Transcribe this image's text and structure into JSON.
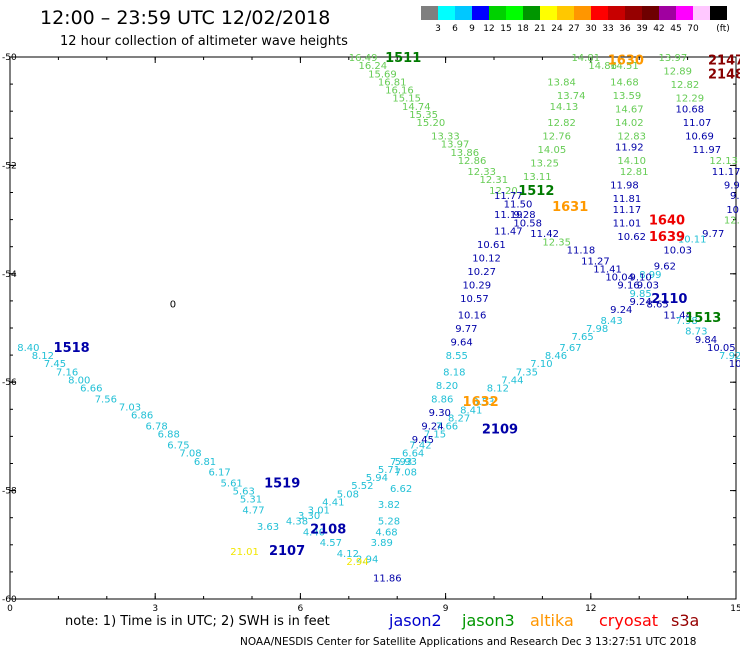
{
  "header": {
    "title": "12:00  –  23:59  UTC  12/02/2018",
    "subtitle": "12 hour collection of altimeter wave heights"
  },
  "colorbar": {
    "colors": [
      "#7f7f7f",
      "#00ffff",
      "#00c8ff",
      "#0000ff",
      "#00d200",
      "#00ff00",
      "#009600",
      "#ffff00",
      "#ffc800",
      "#ff9600",
      "#ff0000",
      "#c80000",
      "#960000",
      "#6e0000",
      "#a000a0",
      "#ff00ff",
      "#ffc8ff",
      "#000000"
    ],
    "labels": [
      "3",
      "6",
      "9",
      "12",
      "15",
      "18",
      "21",
      "24",
      "27",
      "30",
      "33",
      "36",
      "39",
      "42",
      "45",
      "70",
      "(ft)"
    ]
  },
  "chart_data": {
    "type": "scatter",
    "xlim": [
      0,
      15
    ],
    "ylim": [
      -60,
      -50
    ],
    "xticks": [
      "0",
      "3",
      "6",
      "9",
      "12",
      "15"
    ],
    "yticks": [
      "-50",
      "-52",
      "-54",
      "-56",
      "-58",
      "-60"
    ],
    "grid": false,
    "colors": {
      "cyan": "#22c0d6",
      "green": "#66cc55",
      "blue": "#0000a8",
      "dkgreen": "#007a00",
      "orange": "#ff9900",
      "yellow": "#f2e600",
      "red": "#ee0000",
      "darkred": "#880000"
    },
    "values": [
      {
        "x": 7.0,
        "y": -50.0,
        "t": "16.49",
        "c": "green"
      },
      {
        "x": 7.2,
        "y": -50.15,
        "t": "16.24",
        "c": "green"
      },
      {
        "x": 7.4,
        "y": -50.3,
        "t": "15.69",
        "c": "green"
      },
      {
        "x": 7.6,
        "y": -50.45,
        "t": "16.81",
        "c": "green"
      },
      {
        "x": 7.75,
        "y": -50.6,
        "t": "16.16",
        "c": "green"
      },
      {
        "x": 7.9,
        "y": -50.75,
        "t": "15.15",
        "c": "green"
      },
      {
        "x": 8.1,
        "y": -50.9,
        "t": "14.74",
        "c": "green"
      },
      {
        "x": 8.25,
        "y": -51.05,
        "t": "15.35",
        "c": "green"
      },
      {
        "x": 8.4,
        "y": -51.2,
        "t": "15.20",
        "c": "green"
      },
      {
        "x": 8.7,
        "y": -51.45,
        "t": "13.33",
        "c": "green"
      },
      {
        "x": 8.9,
        "y": -51.6,
        "t": "13.97",
        "c": "green"
      },
      {
        "x": 9.1,
        "y": -51.75,
        "t": "13.86",
        "c": "green"
      },
      {
        "x": 9.25,
        "y": -51.9,
        "t": "12.86",
        "c": "green"
      },
      {
        "x": 9.45,
        "y": -52.1,
        "t": "12.33",
        "c": "green"
      },
      {
        "x": 9.7,
        "y": -52.25,
        "t": "12.31",
        "c": "green"
      },
      {
        "x": 9.9,
        "y": -52.45,
        "t": "12.20",
        "c": "green"
      },
      {
        "x": 10.0,
        "y": -52.55,
        "t": "11.77",
        "c": "blue"
      },
      {
        "x": 10.2,
        "y": -52.7,
        "t": "11.50",
        "c": "blue"
      },
      {
        "x": 10.0,
        "y": -52.9,
        "t": "11.19",
        "c": "blue"
      },
      {
        "x": 10.4,
        "y": -52.9,
        "t": "9.28",
        "c": "blue"
      },
      {
        "x": 10.4,
        "y": -53.05,
        "t": "10.58",
        "c": "blue"
      },
      {
        "x": 10.0,
        "y": -53.2,
        "t": "11.47",
        "c": "blue"
      },
      {
        "x": 10.75,
        "y": -53.25,
        "t": "11.42",
        "c": "blue"
      },
      {
        "x": 11.0,
        "y": -53.4,
        "t": "12.35",
        "c": "green"
      },
      {
        "x": 9.65,
        "y": -53.45,
        "t": "10.61",
        "c": "blue"
      },
      {
        "x": 11.5,
        "y": -53.55,
        "t": "11.18",
        "c": "blue"
      },
      {
        "x": 9.55,
        "y": -53.7,
        "t": "10.12",
        "c": "blue"
      },
      {
        "x": 11.8,
        "y": -53.75,
        "t": "11.27",
        "c": "blue"
      },
      {
        "x": 12.05,
        "y": -53.9,
        "t": "11.41",
        "c": "blue"
      },
      {
        "x": 9.45,
        "y": -53.95,
        "t": "10.27",
        "c": "blue"
      },
      {
        "x": 12.3,
        "y": -54.05,
        "t": "10.04",
        "c": "blue"
      },
      {
        "x": 9.35,
        "y": -54.2,
        "t": "10.29",
        "c": "blue"
      },
      {
        "x": 12.55,
        "y": -54.2,
        "t": "9.16",
        "c": "blue"
      },
      {
        "x": 12.95,
        "y": -54.2,
        "t": "9.03",
        "c": "blue"
      },
      {
        "x": 12.8,
        "y": -54.35,
        "t": "9.85",
        "c": "cyan"
      },
      {
        "x": 9.3,
        "y": -54.45,
        "t": "10.57",
        "c": "blue"
      },
      {
        "x": 12.8,
        "y": -54.5,
        "t": "9.24",
        "c": "blue"
      },
      {
        "x": 13.15,
        "y": -54.55,
        "t": "8.65",
        "c": "blue"
      },
      {
        "x": 12.4,
        "y": -54.65,
        "t": "9.24",
        "c": "blue"
      },
      {
        "x": 13.5,
        "y": -54.75,
        "t": "11.44",
        "c": "blue"
      },
      {
        "x": 9.25,
        "y": -54.75,
        "t": "10.16",
        "c": "blue"
      },
      {
        "x": 12.2,
        "y": -54.85,
        "t": "8.43",
        "c": "cyan"
      },
      {
        "x": 13.75,
        "y": -54.85,
        "t": "7.98",
        "c": "cyan"
      },
      {
        "x": 11.9,
        "y": -55.0,
        "t": "7.98",
        "c": "cyan"
      },
      {
        "x": 9.2,
        "y": -55.0,
        "t": "9.77",
        "c": "blue"
      },
      {
        "x": 13.95,
        "y": -55.05,
        "t": "8.73",
        "c": "cyan"
      },
      {
        "x": 11.6,
        "y": -55.15,
        "t": "7.65",
        "c": "cyan"
      },
      {
        "x": 14.15,
        "y": -55.2,
        "t": "9.84",
        "c": "blue"
      },
      {
        "x": 9.1,
        "y": -55.25,
        "t": "9.64",
        "c": "blue"
      },
      {
        "x": 11.35,
        "y": -55.35,
        "t": "7.67",
        "c": "cyan"
      },
      {
        "x": 14.4,
        "y": -55.35,
        "t": "10.05",
        "c": "blue"
      },
      {
        "x": 9.0,
        "y": -55.5,
        "t": "8.55",
        "c": "cyan"
      },
      {
        "x": 11.05,
        "y": -55.5,
        "t": "8.46",
        "c": "cyan"
      },
      {
        "x": 14.65,
        "y": -55.5,
        "t": "7.92",
        "c": "cyan"
      },
      {
        "x": 14.85,
        "y": -55.65,
        "t": "10.15",
        "c": "blue"
      },
      {
        "x": 10.75,
        "y": -55.65,
        "t": "7.10",
        "c": "cyan"
      },
      {
        "x": 8.95,
        "y": -55.8,
        "t": "8.18",
        "c": "cyan"
      },
      {
        "x": 10.45,
        "y": -55.8,
        "t": "7.35",
        "c": "cyan"
      },
      {
        "x": 10.15,
        "y": -55.95,
        "t": "7.44",
        "c": "cyan"
      },
      {
        "x": 8.8,
        "y": -56.05,
        "t": "8.20",
        "c": "cyan"
      },
      {
        "x": 9.85,
        "y": -56.1,
        "t": "8.12",
        "c": "cyan"
      },
      {
        "x": 8.7,
        "y": -56.3,
        "t": "8.86",
        "c": "cyan"
      },
      {
        "x": 9.55,
        "y": -56.35,
        "t": "8.53",
        "c": "cyan"
      },
      {
        "x": 9.3,
        "y": -56.5,
        "t": "8.41",
        "c": "cyan"
      },
      {
        "x": 8.65,
        "y": -56.55,
        "t": "9.30",
        "c": "blue"
      },
      {
        "x": 9.05,
        "y": -56.65,
        "t": "8.27",
        "c": "cyan"
      },
      {
        "x": 8.5,
        "y": -56.8,
        "t": "9.24",
        "c": "blue"
      },
      {
        "x": 8.8,
        "y": -56.8,
        "t": "7.66",
        "c": "cyan"
      },
      {
        "x": 8.55,
        "y": -56.95,
        "t": "7.15",
        "c": "cyan"
      },
      {
        "x": 8.3,
        "y": -57.05,
        "t": "9.45",
        "c": "blue"
      },
      {
        "x": 8.25,
        "y": -57.15,
        "t": "7.42",
        "c": "cyan"
      },
      {
        "x": 8.1,
        "y": -57.3,
        "t": "6.64",
        "c": "cyan"
      },
      {
        "x": 7.85,
        "y": -57.45,
        "t": "7.93",
        "c": "cyan"
      },
      {
        "x": 7.95,
        "y": -57.45,
        "t": "5.93",
        "c": "cyan"
      },
      {
        "x": 7.6,
        "y": -57.6,
        "t": "5.71",
        "c": "cyan"
      },
      {
        "x": 7.95,
        "y": -57.65,
        "t": "7.08",
        "c": "cyan"
      },
      {
        "x": 7.35,
        "y": -57.75,
        "t": "5.94",
        "c": "cyan"
      },
      {
        "x": 7.05,
        "y": -57.9,
        "t": "5.52",
        "c": "cyan"
      },
      {
        "x": 7.85,
        "y": -57.95,
        "t": "6.62",
        "c": "cyan"
      },
      {
        "x": 6.75,
        "y": -58.05,
        "t": "5.08",
        "c": "cyan"
      },
      {
        "x": 6.45,
        "y": -58.2,
        "t": "4.41",
        "c": "cyan"
      },
      {
        "x": 7.6,
        "y": -58.25,
        "t": "3.82",
        "c": "cyan"
      },
      {
        "x": 6.15,
        "y": -58.35,
        "t": "3.01",
        "c": "cyan"
      },
      {
        "x": 5.95,
        "y": -58.45,
        "t": "3.30",
        "c": "cyan"
      },
      {
        "x": 7.6,
        "y": -58.55,
        "t": "5.28",
        "c": "cyan"
      },
      {
        "x": 5.7,
        "y": -58.55,
        "t": "4.38",
        "c": "cyan"
      },
      {
        "x": 5.1,
        "y": -58.65,
        "t": "3.63",
        "c": "cyan"
      },
      {
        "x": 6.05,
        "y": -58.75,
        "t": "4.40",
        "c": "cyan"
      },
      {
        "x": 7.55,
        "y": -58.75,
        "t": "4.68",
        "c": "cyan"
      },
      {
        "x": 6.4,
        "y": -58.95,
        "t": "4.57",
        "c": "cyan"
      },
      {
        "x": 7.45,
        "y": -58.95,
        "t": "3.89",
        "c": "cyan"
      },
      {
        "x": 6.75,
        "y": -59.15,
        "t": "4.12",
        "c": "cyan"
      },
      {
        "x": 7.15,
        "y": -59.25,
        "t": "2.94",
        "c": "cyan"
      },
      {
        "x": 6.95,
        "y": -59.3,
        "t": "2.94",
        "c": "yellow"
      },
      {
        "x": 4.8,
        "y": -58.35,
        "t": "4.77",
        "c": "cyan"
      },
      {
        "x": 4.75,
        "y": -58.15,
        "t": "5.31",
        "c": "cyan"
      },
      {
        "x": 4.6,
        "y": -58.0,
        "t": "5.63",
        "c": "cyan"
      },
      {
        "x": 4.35,
        "y": -57.85,
        "t": "5.61",
        "c": "cyan"
      },
      {
        "x": 4.1,
        "y": -57.65,
        "t": "6.17",
        "c": "cyan"
      },
      {
        "x": 3.8,
        "y": -57.45,
        "t": "6.81",
        "c": "cyan"
      },
      {
        "x": 3.5,
        "y": -57.3,
        "t": "7.08",
        "c": "cyan"
      },
      {
        "x": 3.25,
        "y": -57.15,
        "t": "6.75",
        "c": "cyan"
      },
      {
        "x": 3.05,
        "y": -56.95,
        "t": "6.88",
        "c": "cyan"
      },
      {
        "x": 2.8,
        "y": -56.8,
        "t": "6.78",
        "c": "cyan"
      },
      {
        "x": 2.5,
        "y": -56.6,
        "t": "6.86",
        "c": "cyan"
      },
      {
        "x": 2.25,
        "y": -56.45,
        "t": "7.03",
        "c": "cyan"
      },
      {
        "x": 1.75,
        "y": -56.3,
        "t": "7.56",
        "c": "cyan"
      },
      {
        "x": 1.45,
        "y": -56.1,
        "t": "6.66",
        "c": "cyan"
      },
      {
        "x": 1.2,
        "y": -55.95,
        "t": "8.00",
        "c": "cyan"
      },
      {
        "x": 0.95,
        "y": -55.8,
        "t": "7.16",
        "c": "cyan"
      },
      {
        "x": 0.7,
        "y": -55.65,
        "t": "7.45",
        "c": "cyan"
      },
      {
        "x": 0.45,
        "y": -55.5,
        "t": "8.12",
        "c": "cyan"
      },
      {
        "x": 0.15,
        "y": -55.35,
        "t": "8.40",
        "c": "cyan"
      },
      {
        "x": 7.5,
        "y": -59.6,
        "t": "11.86",
        "c": "blue"
      },
      {
        "x": 11.6,
        "y": -50.0,
        "t": "14.81",
        "c": "green"
      },
      {
        "x": 11.95,
        "y": -50.15,
        "t": "14.86",
        "c": "green"
      },
      {
        "x": 11.1,
        "y": -50.45,
        "t": "13.84",
        "c": "green"
      },
      {
        "x": 11.3,
        "y": -50.7,
        "t": "13.74",
        "c": "green"
      },
      {
        "x": 11.15,
        "y": -50.9,
        "t": "14.13",
        "c": "green"
      },
      {
        "x": 11.1,
        "y": -51.2,
        "t": "12.82",
        "c": "green"
      },
      {
        "x": 11.0,
        "y": -51.45,
        "t": "12.76",
        "c": "green"
      },
      {
        "x": 10.9,
        "y": -51.7,
        "t": "14.05",
        "c": "green"
      },
      {
        "x": 10.75,
        "y": -51.95,
        "t": "13.25",
        "c": "green"
      },
      {
        "x": 10.6,
        "y": -52.2,
        "t": "13.11",
        "c": "green"
      },
      {
        "x": 12.4,
        "y": -50.15,
        "t": "14.51",
        "c": "green"
      },
      {
        "x": 12.4,
        "y": -50.45,
        "t": "14.68",
        "c": "green"
      },
      {
        "x": 12.45,
        "y": -50.7,
        "t": "13.59",
        "c": "green"
      },
      {
        "x": 12.5,
        "y": -50.95,
        "t": "14.67",
        "c": "green"
      },
      {
        "x": 12.5,
        "y": -51.2,
        "t": "14.02",
        "c": "green"
      },
      {
        "x": 12.55,
        "y": -51.45,
        "t": "12.83",
        "c": "green"
      },
      {
        "x": 12.5,
        "y": -51.65,
        "t": "11.92",
        "c": "blue"
      },
      {
        "x": 12.55,
        "y": -51.9,
        "t": "14.10",
        "c": "green"
      },
      {
        "x": 12.6,
        "y": -52.1,
        "t": "12.81",
        "c": "green"
      },
      {
        "x": 12.4,
        "y": -52.35,
        "t": "11.98",
        "c": "blue"
      },
      {
        "x": 12.45,
        "y": -52.6,
        "t": "11.81",
        "c": "blue"
      },
      {
        "x": 12.45,
        "y": -52.8,
        "t": "11.17",
        "c": "blue"
      },
      {
        "x": 12.45,
        "y": -53.05,
        "t": "11.01",
        "c": "blue"
      },
      {
        "x": 12.55,
        "y": -53.3,
        "t": "10.62",
        "c": "blue"
      },
      {
        "x": 13.4,
        "y": -50.0,
        "t": "13.97",
        "c": "green"
      },
      {
        "x": 13.5,
        "y": -50.25,
        "t": "12.89",
        "c": "green"
      },
      {
        "x": 13.65,
        "y": -50.5,
        "t": "12.82",
        "c": "green"
      },
      {
        "x": 13.75,
        "y": -50.75,
        "t": "12.29",
        "c": "green"
      },
      {
        "x": 13.75,
        "y": -50.95,
        "t": "10.68",
        "c": "blue"
      },
      {
        "x": 13.9,
        "y": -51.2,
        "t": "11.07",
        "c": "blue"
      },
      {
        "x": 13.95,
        "y": -51.45,
        "t": "10.69",
        "c": "blue"
      },
      {
        "x": 14.1,
        "y": -51.7,
        "t": "11.97",
        "c": "blue"
      },
      {
        "x": 14.45,
        "y": -51.9,
        "t": "12.13",
        "c": "green"
      },
      {
        "x": 14.5,
        "y": -52.1,
        "t": "11.17",
        "c": "blue"
      },
      {
        "x": 14.75,
        "y": -52.35,
        "t": "9.9",
        "c": "blue"
      },
      {
        "x": 14.9,
        "y": -52.55,
        "t": "9.1",
        "c": "blue"
      },
      {
        "x": 14.8,
        "y": -52.8,
        "t": "10.",
        "c": "blue"
      },
      {
        "x": 14.75,
        "y": -53.0,
        "t": "12.5",
        "c": "green"
      },
      {
        "x": 14.3,
        "y": -53.25,
        "t": "9.77",
        "c": "blue"
      },
      {
        "x": 13.8,
        "y": -53.35,
        "t": "10.11",
        "c": "cyan"
      },
      {
        "x": 13.5,
        "y": -53.55,
        "t": "10.03",
        "c": "blue"
      },
      {
        "x": 13.3,
        "y": -53.85,
        "t": "9.62",
        "c": "blue"
      },
      {
        "x": 13.0,
        "y": -54.0,
        "t": "8.99",
        "c": "cyan"
      },
      {
        "x": 12.8,
        "y": -54.05,
        "t": "9.10",
        "c": "blue"
      }
    ],
    "labels": [
      {
        "x": 7.75,
        "y": -50.0,
        "t": "1511",
        "c": "dkgreen"
      },
      {
        "x": 10.5,
        "y": -52.45,
        "t": "1512",
        "c": "dkgreen"
      },
      {
        "x": 11.2,
        "y": -52.75,
        "t": "1631",
        "c": "orange"
      },
      {
        "x": 12.35,
        "y": -50.05,
        "t": "1630",
        "c": "orange"
      },
      {
        "x": 14.6,
        "y": -50.05,
        "t": "2147",
        "c": "darkred"
      },
      {
        "x": 14.85,
        "y": -50.3,
        "t": "2148",
        "c": "darkred"
      },
      {
        "x": 13.2,
        "y": -53.0,
        "t": "1640",
        "c": "red"
      },
      {
        "x": 13.2,
        "y": -53.3,
        "t": "1639",
        "c": "red"
      },
      {
        "x": 13.25,
        "y": -54.45,
        "t": "2110",
        "c": "blue"
      },
      {
        "x": 13.95,
        "y": -54.8,
        "t": "1513",
        "c": "dkgreen"
      },
      {
        "x": 0.9,
        "y": -55.35,
        "t": "1518",
        "c": "blue"
      },
      {
        "x": 9.35,
        "y": -56.35,
        "t": "1632",
        "c": "orange"
      },
      {
        "x": 9.75,
        "y": -56.85,
        "t": "2109",
        "c": "blue"
      },
      {
        "x": 5.25,
        "y": -57.85,
        "t": "1519",
        "c": "blue"
      },
      {
        "x": 6.2,
        "y": -58.7,
        "t": "2108",
        "c": "blue"
      },
      {
        "x": 5.35,
        "y": -59.1,
        "t": "2107",
        "c": "blue"
      },
      {
        "x": 4.55,
        "y": -59.1,
        "t": "21.01",
        "c": "yellow"
      }
    ],
    "marker": {
      "x": 3.3,
      "y": -54.55,
      "t": "0"
    }
  },
  "footer": {
    "note": "note:  1) Time is in UTC;  2) SWH is in feet",
    "satellites": [
      {
        "name": "jason2",
        "color": "#0000cc"
      },
      {
        "name": "jason3",
        "color": "#009600"
      },
      {
        "name": "altika",
        "color": "#ff9600"
      },
      {
        "name": "cryosat",
        "color": "#ff0000"
      },
      {
        "name": "s3a",
        "color": "#960000"
      }
    ],
    "credit": "NOAA/NESDIS Center for Satellite Applications and Research    Dec  3 13:27:51 UTC 2018"
  }
}
